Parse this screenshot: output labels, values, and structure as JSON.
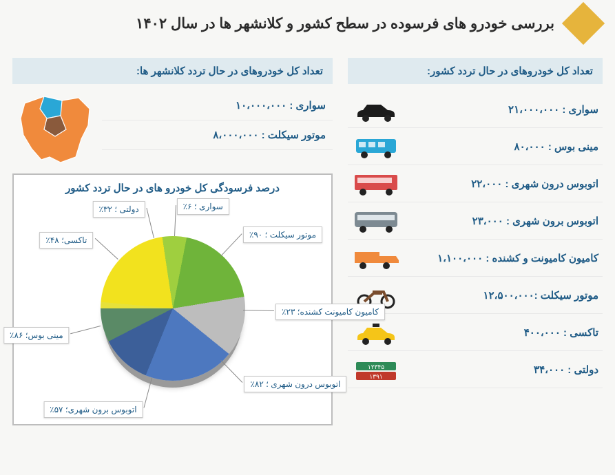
{
  "title": "بررسی خودرو های فرسوده در سطح کشور و کلانشهر ها در سال ۱۴۰۲",
  "country_header": "تعداد کل خودروهای در حال تردد کشور:",
  "metro_header": "تعداد کل خودروهای در حال تردد کلانشهر ها:",
  "country_rows": [
    {
      "label": "سواری : ۲۱،۰۰۰،۰۰۰",
      "icon": "car",
      "color": "#1b1b1b"
    },
    {
      "label": "مینی  بوس : ۸۰،۰۰۰",
      "icon": "minibus",
      "color": "#2aa7d6"
    },
    {
      "label": "اتوبوس درون شهری : ۲۲،۰۰۰",
      "icon": "citybus",
      "color": "#d94b4b"
    },
    {
      "label": "اتوبوس برون شهری : ۲۳،۰۰۰",
      "icon": "coach",
      "color": "#7d8a92"
    },
    {
      "label": "کامیون کامیونت و کشنده : ۱،۱۰۰،۰۰۰",
      "icon": "truck",
      "color": "#f08a3c"
    },
    {
      "label": "موتور سیکلت :۱۲،۵۰۰،۰۰۰",
      "icon": "motorcycle",
      "color": "#7a4d2e"
    },
    {
      "label": "تاکسی : ۴۰۰،۰۰۰",
      "icon": "taxi",
      "color": "#f5c518"
    },
    {
      "label": "دولتی : ۳۴،۰۰۰",
      "icon": "govplate",
      "color": "#2e8b57"
    }
  ],
  "metro_rows": [
    {
      "label": "سواری : ۱۰،۰۰۰،۰۰۰"
    },
    {
      "label": "موتور سیکلت : ۸،۰۰۰،۰۰۰"
    }
  ],
  "map_colors": {
    "base": "#f08a3c",
    "alt1": "#2aa7d6",
    "alt2": "#8a5a3c"
  },
  "pie_chart": {
    "title": "درصد فرسودگی کل خودرو های در حال تردد کشور",
    "type": "pie",
    "background_color": "#ffffff",
    "border_color": "#bdbdbd",
    "label_fontsize": 12,
    "slices": [
      {
        "name": "سواری",
        "label": "سواری ؛ ۶٪",
        "value": 6,
        "color": "#e7e13a"
      },
      {
        "name": "موتور سیکلت",
        "label": "موتور سیکلت ؛ ۹۰٪",
        "value": 90,
        "color": "#f2e21e"
      },
      {
        "name": "کامیون کامیونت کشنده",
        "label": "کامیون کامیونت کشنده؛ ۲۳٪",
        "value": 23,
        "color": "#9fcf3f"
      },
      {
        "name": "اتوبوس درون شهری",
        "label": "اتوبوس درون شهری ؛ ۸۲٪",
        "value": 82,
        "color": "#6fb43a"
      },
      {
        "name": "اتوبوس برون شهری",
        "label": "اتوبوس برون شهری؛ ۵۷٪",
        "value": 57,
        "color": "#bdbdbd"
      },
      {
        "name": "مینی بوس",
        "label": "مینی بوس؛ ۸۶٪",
        "value": 86,
        "color": "#4d78bf"
      },
      {
        "name": "تاکسی",
        "label": "تاکسی؛ ۴۸٪",
        "value": 48,
        "color": "#3c5f99"
      },
      {
        "name": "دولتی",
        "label": "دولتی ؛ ۳۲٪",
        "value": 32,
        "color": "#5a8a66"
      }
    ]
  }
}
